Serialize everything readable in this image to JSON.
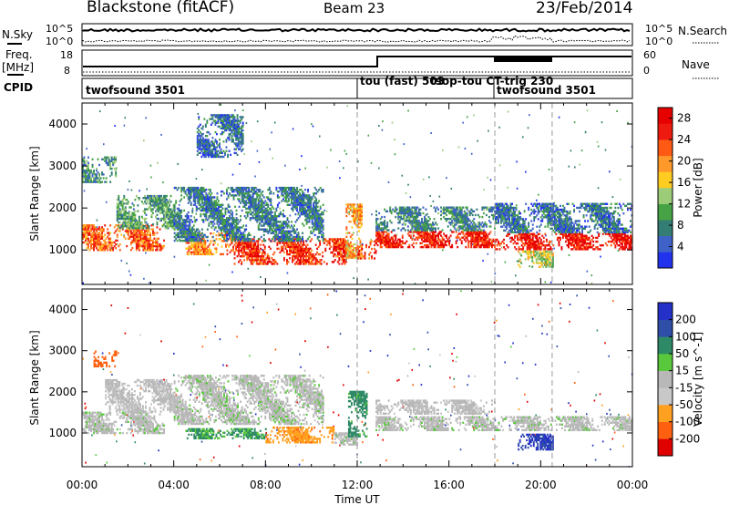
{
  "header": {
    "station": "Blackstone (fitACF)",
    "beam": "Beam 23",
    "date": "23/Feb/2014"
  },
  "summary_panels": {
    "nsky": {
      "left_label": "N.Sky",
      "right_label": "N.Search",
      "left_ticks": [
        "10^5",
        "10^0"
      ],
      "right_ticks": [
        "10^5",
        "10^0"
      ]
    },
    "freq": {
      "left_label_line1": "Freq.",
      "left_label_line2": "[MHz]",
      "right_label": "Nave",
      "left_ticks": [
        "18",
        "8"
      ],
      "right_ticks": [
        "60",
        "0"
      ]
    },
    "cpid": {
      "label": "CPID",
      "segments": [
        {
          "name": "twofsound 3501",
          "start_hour": 0,
          "end_hour": 12
        },
        {
          "name": "tou (fast) 503",
          "start_hour": 12,
          "end_hour": 13
        },
        {
          "name": "tsop-tou CT-trig 230",
          "start_hour": 13,
          "end_hour": 18
        },
        {
          "name": "twofsound 3501",
          "start_hour": 18,
          "end_hour": 24
        }
      ]
    }
  },
  "colors": {
    "power_scale": [
      "#2233ee",
      "#3f62c8",
      "#337d74",
      "#46a244",
      "#9dcc78",
      "#ffcc22",
      "#ff9a2a",
      "#ff5a14",
      "#ee1a10",
      "#e60000"
    ],
    "velocity_scale": [
      "#e00000",
      "#ff6010",
      "#ffa020",
      "#c8c8c8",
      "#b8b8b8",
      "#5ac83c",
      "#2e8a66",
      "#2e4ea8",
      "#2430c8"
    ]
  },
  "chart_data": [
    {
      "type": "heatmap",
      "panel": "power",
      "title": "",
      "xlabel": "Time UT",
      "ylabel": "Slant Range [km]",
      "x_ticks": [
        "00:00",
        "04:00",
        "08:00",
        "12:00",
        "16:00",
        "20:00",
        "00:00"
      ],
      "xlim_hours": [
        0,
        24
      ],
      "ylim": [
        180,
        4500
      ],
      "y_ticks": [
        1000,
        2000,
        3000,
        4000
      ],
      "colorbar": {
        "label": "Power [dB]",
        "ticks": [
          4,
          8,
          12,
          16,
          20,
          24,
          28
        ],
        "range": [
          0,
          30
        ]
      },
      "dashed_time_markers_hours": [
        12,
        18,
        20.5
      ],
      "echo_bands": [
        {
          "t0": 0.0,
          "t1": 3.6,
          "r0": 980,
          "r1": 1600,
          "power": 22
        },
        {
          "t0": 1.5,
          "t1": 4.0,
          "r0": 1500,
          "r1": 2300,
          "power": 10
        },
        {
          "t0": 4.5,
          "t1": 6.5,
          "r0": 880,
          "r1": 1400,
          "power": 20
        },
        {
          "t0": 6.5,
          "t1": 11.5,
          "r0": 650,
          "r1": 1250,
          "power": 25
        },
        {
          "t0": 4.0,
          "t1": 10.5,
          "r0": 1200,
          "r1": 2500,
          "power": 7
        },
        {
          "t0": 5.0,
          "t1": 7.0,
          "r0": 3200,
          "r1": 4200,
          "power": 6
        },
        {
          "t0": 0.0,
          "t1": 1.5,
          "r0": 2600,
          "r1": 3200,
          "power": 9
        },
        {
          "t0": 11.5,
          "t1": 12.2,
          "r0": 800,
          "r1": 2100,
          "power": 19
        },
        {
          "t0": 12.0,
          "t1": 12.8,
          "r0": 780,
          "r1": 1200,
          "power": 24
        },
        {
          "t0": 12.8,
          "t1": 18.0,
          "r0": 1050,
          "r1": 1450,
          "power": 26
        },
        {
          "t0": 12.8,
          "t1": 18.0,
          "r0": 1450,
          "r1": 2000,
          "power": 8
        },
        {
          "t0": 18.0,
          "t1": 24.0,
          "r0": 1000,
          "r1": 1400,
          "power": 27
        },
        {
          "t0": 18.0,
          "t1": 24.0,
          "r0": 1400,
          "r1": 2100,
          "power": 6
        },
        {
          "t0": 19.0,
          "t1": 20.5,
          "r0": 580,
          "r1": 950,
          "power": 15
        }
      ]
    },
    {
      "type": "heatmap",
      "panel": "velocity",
      "title": "",
      "xlabel": "Time UT",
      "ylabel": "Slant Range [km]",
      "x_ticks": [
        "00:00",
        "04:00",
        "08:00",
        "12:00",
        "16:00",
        "20:00",
        "00:00"
      ],
      "xlim_hours": [
        0,
        24
      ],
      "ylim": [
        180,
        4500
      ],
      "y_ticks": [
        1000,
        2000,
        3000,
        4000
      ],
      "colorbar": {
        "label": "Velocity [m s^-1]",
        "ticks": [
          "200",
          "100",
          "50",
          "15",
          "-15",
          "-50",
          "-100",
          "-200"
        ]
      },
      "dashed_time_markers_hours": [
        12,
        18,
        20.5
      ],
      "echo_bands": [
        {
          "t0": 0.0,
          "t1": 3.6,
          "r0": 980,
          "r1": 1500,
          "velocity": 0
        },
        {
          "t0": 1.0,
          "t1": 4.0,
          "r0": 1500,
          "r1": 2300,
          "velocity": -10
        },
        {
          "t0": 0.5,
          "t1": 1.5,
          "r0": 2600,
          "r1": 3000,
          "velocity": -120
        },
        {
          "t0": 4.5,
          "t1": 8.0,
          "r0": 850,
          "r1": 1100,
          "velocity": 40
        },
        {
          "t0": 8.0,
          "t1": 11.0,
          "r0": 750,
          "r1": 1150,
          "velocity": -60
        },
        {
          "t0": 11.0,
          "t1": 12.0,
          "r0": 700,
          "r1": 1000,
          "velocity": 0
        },
        {
          "t0": 4.0,
          "t1": 10.5,
          "r0": 1200,
          "r1": 2400,
          "velocity": 0
        },
        {
          "t0": 11.6,
          "t1": 12.4,
          "r0": 900,
          "r1": 2000,
          "velocity": 50
        },
        {
          "t0": 12.8,
          "t1": 24.0,
          "r0": 1050,
          "r1": 1400,
          "velocity": 0
        },
        {
          "t0": 12.8,
          "t1": 18.0,
          "r0": 1450,
          "r1": 1800,
          "velocity": -5
        },
        {
          "t0": 19.0,
          "t1": 20.5,
          "r0": 580,
          "r1": 950,
          "velocity": 150
        }
      ]
    }
  ]
}
